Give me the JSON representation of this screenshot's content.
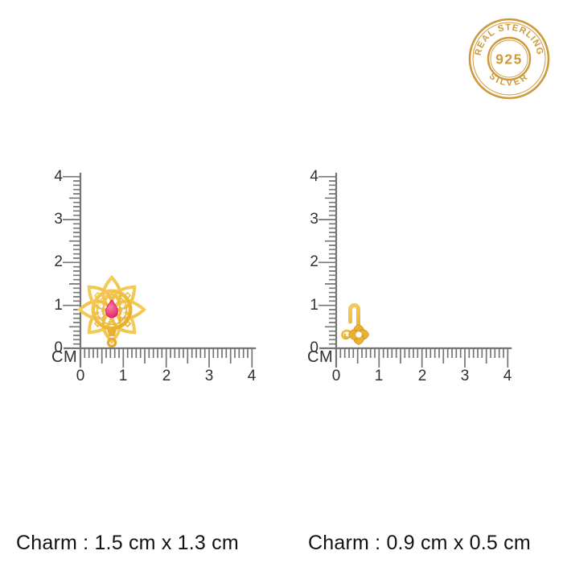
{
  "badge": {
    "top_text": "REAL STERLING",
    "center_text": "925",
    "bottom_text": "SILVER"
  },
  "rulers": {
    "unit_label": "CM",
    "scale_labels": [
      "0",
      "1",
      "2",
      "3",
      "4"
    ]
  },
  "captions": {
    "left": "Charm : 1.5 cm x 1.3 cm",
    "right": "Charm : 0.9 cm x 0.5 cm"
  },
  "charms": {
    "left_description": "gold-lotus-charm-with-pink-pear-stone",
    "right_description": "gold-hook-flower-charm-with-white-stone"
  },
  "colors": {
    "badge_gold": "#CE9A3C",
    "charm_gold": "#EFBA3A",
    "charm_gold_light": "#F8DB74",
    "charm_gold_dark": "#D69417",
    "stone_pink": "#E3145C",
    "stone_pink_light": "#FA7FA8",
    "stone_white": "#FFFFFF",
    "ruler_line": "#757575",
    "ruler_text": "#303030",
    "caption_text": "#121212"
  }
}
